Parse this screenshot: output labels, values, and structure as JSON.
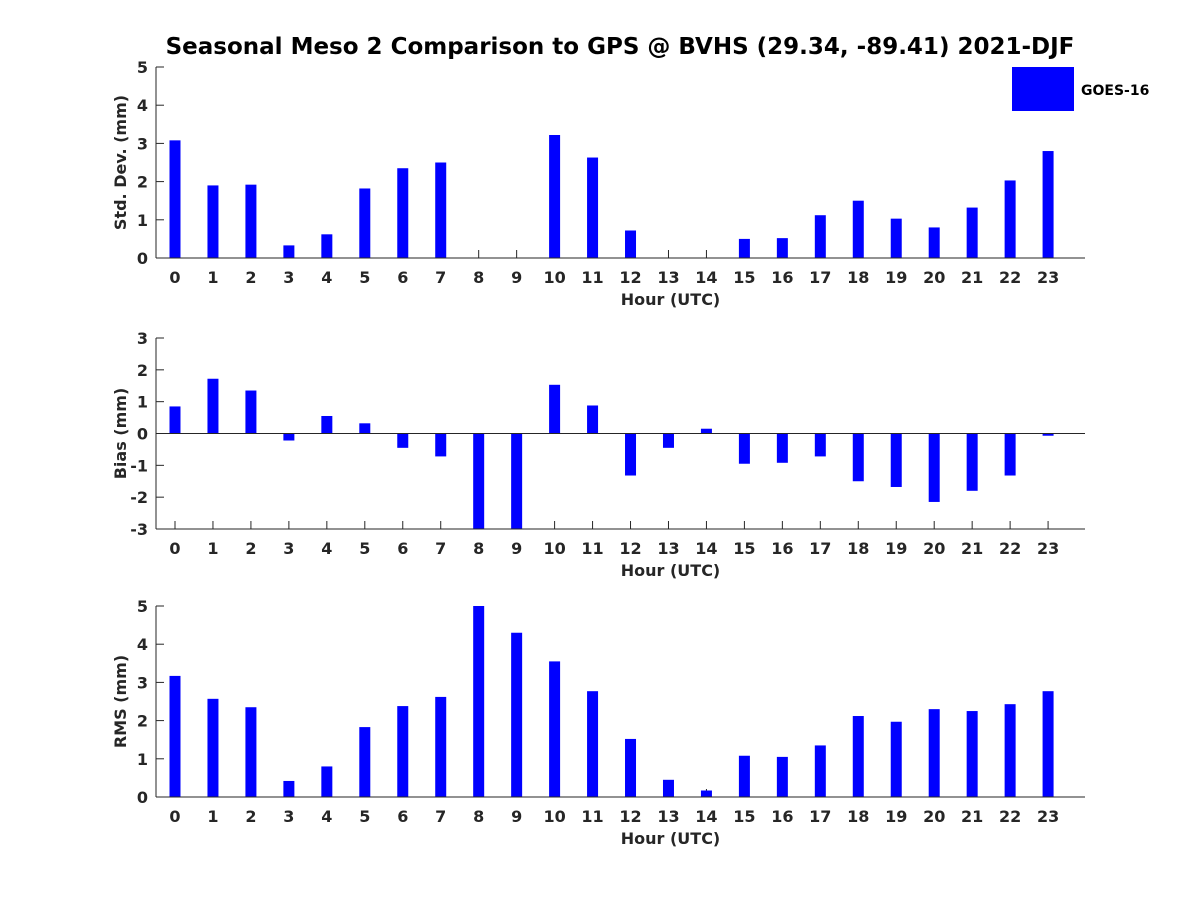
{
  "title": "Seasonal Meso 2 Comparison to GPS @ BVHS (29.34, -89.41) 2021-DJF",
  "legend": {
    "label": "GOES-16",
    "color": "#0000ff",
    "position": "top-right"
  },
  "chart_data": [
    {
      "type": "bar",
      "title": "",
      "xlabel": "Hour (UTC)",
      "ylabel": "Std. Dev. (mm)",
      "ylim": [
        0,
        5
      ],
      "yticks": [
        0,
        1,
        2,
        3,
        4,
        5
      ],
      "categories": [
        "0",
        "1",
        "2",
        "3",
        "4",
        "5",
        "6",
        "7",
        "8",
        "9",
        "10",
        "11",
        "12",
        "13",
        "14",
        "15",
        "16",
        "17",
        "18",
        "19",
        "20",
        "21",
        "22",
        "23"
      ],
      "series": [
        {
          "name": "GOES-16",
          "color": "#0000ff",
          "values": [
            3.08,
            1.9,
            1.92,
            0.33,
            0.62,
            1.82,
            2.35,
            2.5,
            0,
            0,
            3.22,
            2.63,
            0.72,
            0,
            0,
            0.5,
            0.52,
            1.12,
            1.5,
            1.03,
            0.8,
            1.32,
            2.03,
            2.8
          ]
        }
      ]
    },
    {
      "type": "bar",
      "title": "",
      "xlabel": "Hour (UTC)",
      "ylabel": "Bias (mm)",
      "ylim": [
        -3,
        3
      ],
      "yticks": [
        -3,
        -2,
        -1,
        0,
        1,
        2,
        3
      ],
      "categories": [
        "0",
        "1",
        "2",
        "3",
        "4",
        "5",
        "6",
        "7",
        "8",
        "9",
        "10",
        "11",
        "12",
        "13",
        "14",
        "15",
        "16",
        "17",
        "18",
        "19",
        "20",
        "21",
        "22",
        "23"
      ],
      "series": [
        {
          "name": "GOES-16",
          "color": "#0000ff",
          "values": [
            0.85,
            1.72,
            1.35,
            -0.22,
            0.55,
            0.32,
            -0.45,
            -0.72,
            -3.0,
            -3.0,
            1.53,
            0.88,
            -1.32,
            -0.45,
            0.15,
            -0.95,
            -0.92,
            -0.72,
            -1.5,
            -1.68,
            -2.15,
            -1.8,
            -1.32,
            -0.07
          ]
        }
      ]
    },
    {
      "type": "bar",
      "title": "",
      "xlabel": "Hour (UTC)",
      "ylabel": "RMS (mm)",
      "ylim": [
        0,
        5
      ],
      "yticks": [
        0,
        1,
        2,
        3,
        4,
        5
      ],
      "categories": [
        "0",
        "1",
        "2",
        "3",
        "4",
        "5",
        "6",
        "7",
        "8",
        "9",
        "10",
        "11",
        "12",
        "13",
        "14",
        "15",
        "16",
        "17",
        "18",
        "19",
        "20",
        "21",
        "22",
        "23"
      ],
      "series": [
        {
          "name": "GOES-16",
          "color": "#0000ff",
          "values": [
            3.17,
            2.57,
            2.35,
            0.42,
            0.8,
            1.83,
            2.38,
            2.62,
            5.0,
            4.3,
            3.55,
            2.77,
            1.52,
            0.45,
            0.17,
            1.08,
            1.05,
            1.35,
            2.12,
            1.97,
            2.3,
            2.25,
            2.43,
            2.77
          ]
        }
      ]
    }
  ]
}
